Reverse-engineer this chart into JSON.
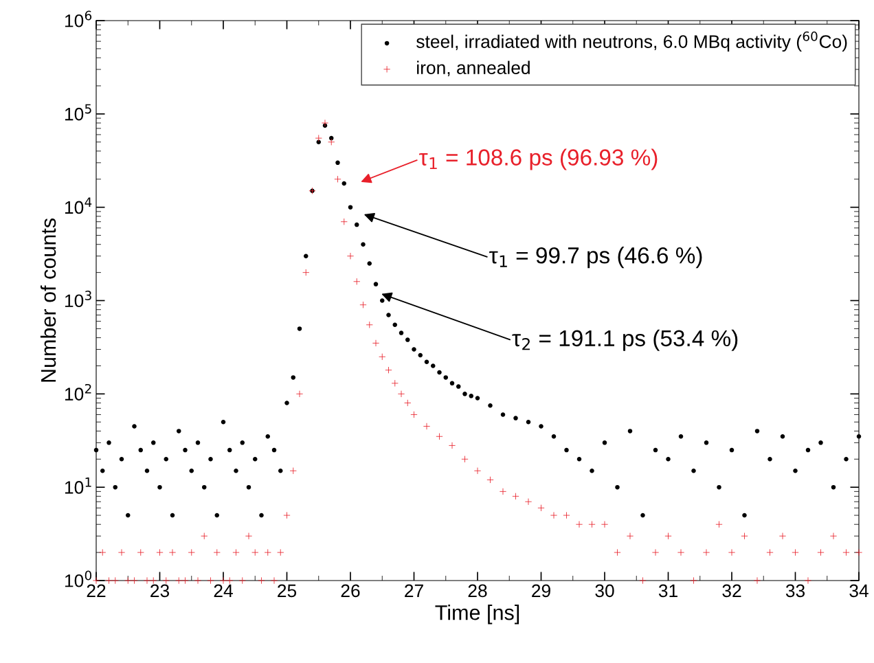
{
  "chart_data": {
    "type": "scatter",
    "xlabel": "Time [ns]",
    "ylabel": "Number of counts",
    "log": "y",
    "xlim": [
      22,
      34
    ],
    "xticks": [
      22,
      23,
      24,
      25,
      26,
      27,
      28,
      29,
      30,
      31,
      32,
      33,
      34
    ],
    "ylim": [
      1,
      1000000
    ],
    "yticks": [
      {
        "value": 1,
        "label": "10$^{0}$"
      },
      {
        "value": 10,
        "label": "10$^{1}$"
      },
      {
        "value": 100,
        "label": "10$^{2}$"
      },
      {
        "value": 1000,
        "label": "10$^{3}$"
      },
      {
        "value": 10000,
        "label": "10$^{4}$"
      },
      {
        "value": 100000,
        "label": "10$^{5}$"
      },
      {
        "value": 1000000,
        "label": "10$^{6}$"
      }
    ],
    "legend": "top right",
    "grid": false,
    "series": [
      {
        "name": "steel, irradiated with neutrons, 6.0 MBq activity ($^{60}$Co)",
        "color": "#000000",
        "marker": "circle",
        "x": [
          22.0,
          22.1,
          22.2,
          22.3,
          22.4,
          22.5,
          22.6,
          22.7,
          22.8,
          22.9,
          23.0,
          23.1,
          23.2,
          23.3,
          23.4,
          23.5,
          23.6,
          23.7,
          23.8,
          23.9,
          24.0,
          24.1,
          24.2,
          24.3,
          24.4,
          24.5,
          24.6,
          24.7,
          24.8,
          24.9,
          25.0,
          25.1,
          25.2,
          25.3,
          25.4,
          25.5,
          25.6,
          25.7,
          25.8,
          25.9,
          26.0,
          26.1,
          26.2,
          26.3,
          26.4,
          26.5,
          26.6,
          26.7,
          26.8,
          26.9,
          27.0,
          27.1,
          27.2,
          27.3,
          27.4,
          27.5,
          27.6,
          27.7,
          27.8,
          27.9,
          28.0,
          28.2,
          28.4,
          28.6,
          28.8,
          29.0,
          29.2,
          29.4,
          29.6,
          29.8,
          30.0,
          30.2,
          30.4,
          30.6,
          30.8,
          31.0,
          31.2,
          31.4,
          31.6,
          31.8,
          32.0,
          32.2,
          32.4,
          32.6,
          32.8,
          33.0,
          33.2,
          33.4,
          33.6,
          33.8,
          34.0
        ],
        "values": [
          25,
          15,
          30,
          10,
          20,
          5,
          45,
          25,
          15,
          30,
          10,
          20,
          5,
          40,
          25,
          15,
          30,
          10,
          20,
          5,
          50,
          25,
          15,
          30,
          10,
          20,
          5,
          35,
          25,
          15,
          80,
          150,
          500,
          3000,
          15000,
          50000,
          75000,
          55000,
          30000,
          18000,
          10000,
          6500,
          4000,
          2500,
          1500,
          1000,
          700,
          550,
          450,
          380,
          300,
          260,
          220,
          200,
          170,
          150,
          130,
          120,
          100,
          95,
          90,
          75,
          60,
          55,
          50,
          45,
          35,
          25,
          20,
          15,
          30,
          10,
          40,
          5,
          25,
          20,
          35,
          15,
          30,
          10,
          25,
          5,
          40,
          20,
          35,
          15,
          25,
          30,
          10,
          20,
          35
        ]
      },
      {
        "name": "iron, annealed",
        "color": "#e8202a",
        "marker": "cross",
        "x": [
          22.0,
          22.1,
          22.2,
          22.3,
          22.4,
          22.5,
          22.6,
          22.7,
          22.8,
          22.9,
          23.0,
          23.1,
          23.2,
          23.3,
          23.4,
          23.5,
          23.6,
          23.7,
          23.8,
          23.9,
          24.0,
          24.1,
          24.2,
          24.3,
          24.4,
          24.5,
          24.6,
          24.7,
          24.8,
          24.9,
          25.0,
          25.1,
          25.2,
          25.3,
          25.4,
          25.5,
          25.6,
          25.7,
          25.8,
          25.9,
          26.0,
          26.1,
          26.2,
          26.3,
          26.4,
          26.5,
          26.6,
          26.7,
          26.8,
          26.9,
          27.0,
          27.2,
          27.4,
          27.6,
          27.8,
          28.0,
          28.2,
          28.4,
          28.6,
          28.8,
          29.0,
          29.2,
          29.4,
          29.6,
          29.8,
          30.0,
          30.2,
          30.4,
          30.6,
          30.8,
          31.0,
          31.2,
          31.4,
          31.6,
          31.8,
          32.0,
          32.2,
          32.4,
          32.6,
          32.8,
          33.0,
          33.2,
          33.4,
          33.6,
          33.8,
          34.0
        ],
        "values": [
          1,
          2,
          1,
          1,
          2,
          1,
          1,
          2,
          1,
          1,
          2,
          1,
          2,
          1,
          1,
          2,
          1,
          3,
          1,
          2,
          1,
          1,
          2,
          1,
          3,
          2,
          1,
          2,
          1,
          2,
          5,
          15,
          100,
          2000,
          15000,
          55000,
          80000,
          50000,
          20000,
          7000,
          3000,
          1600,
          900,
          550,
          350,
          250,
          180,
          130,
          100,
          80,
          60,
          45,
          35,
          28,
          20,
          15,
          12,
          9,
          8,
          7,
          6,
          5,
          5,
          4,
          4,
          4,
          2,
          3,
          1,
          2,
          3,
          2,
          1,
          2,
          4,
          2,
          3,
          1,
          2,
          3,
          2,
          1,
          2,
          3,
          2,
          2
        ]
      }
    ],
    "annotations": [
      "τ$_{1}$ = 108.6 ps (96.93 %)",
      "τ$_{1}$ = 99.7 ps (46.6 %)",
      "τ$_{2}$ = 191.1 ps (53.4 %)"
    ]
  }
}
